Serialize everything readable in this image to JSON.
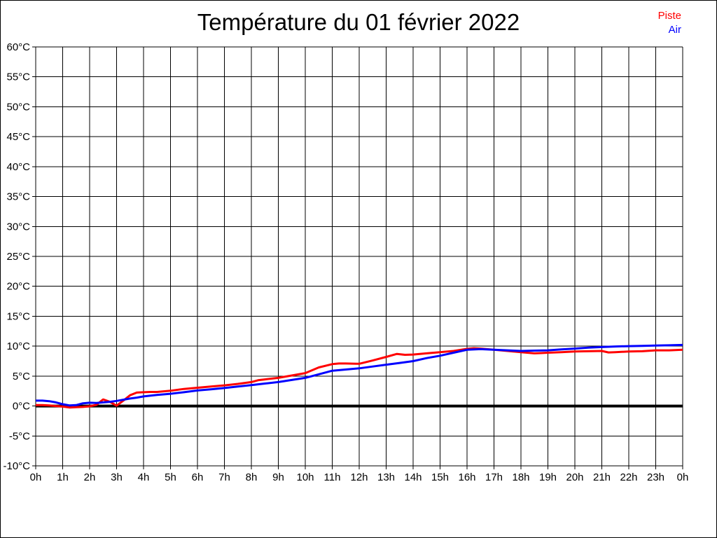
{
  "page": {
    "background_color": "#ffffff",
    "border_color": "#000000"
  },
  "chart_data": {
    "type": "line",
    "title": "Température du 01 février 2022",
    "xlabel": "",
    "ylabel": "",
    "xlim": [
      0,
      24
    ],
    "ylim": [
      -10,
      60
    ],
    "grid": true,
    "grid_color": "#000000",
    "zero_line_value": 0,
    "zero_line_color": "#000000",
    "legend_position": "top-right",
    "x_tick_labels": [
      "0h",
      "1h",
      "2h",
      "3h",
      "4h",
      "5h",
      "6h",
      "7h",
      "8h",
      "9h",
      "10h",
      "11h",
      "12h",
      "13h",
      "14h",
      "15h",
      "16h",
      "17h",
      "18h",
      "19h",
      "20h",
      "21h",
      "22h",
      "23h",
      "0h"
    ],
    "x_tick_hours": [
      0,
      1,
      2,
      3,
      4,
      5,
      6,
      7,
      8,
      9,
      10,
      11,
      12,
      13,
      14,
      15,
      16,
      17,
      18,
      19,
      20,
      21,
      22,
      23,
      24
    ],
    "y_ticks": [
      60,
      55,
      50,
      45,
      40,
      35,
      30,
      25,
      20,
      15,
      10,
      5,
      0,
      -5,
      -10
    ],
    "y_tick_suffix": "°C",
    "series": [
      {
        "name": "Piste",
        "color": "#ff0000",
        "points": [
          [
            0,
            0.15
          ],
          [
            0.25,
            0.15
          ],
          [
            0.5,
            0.1
          ],
          [
            0.75,
            0.0
          ],
          [
            1,
            -0.1
          ],
          [
            1.25,
            -0.25
          ],
          [
            1.5,
            -0.2
          ],
          [
            1.75,
            -0.15
          ],
          [
            2,
            -0.05
          ],
          [
            2.25,
            0.2
          ],
          [
            2.5,
            1.1
          ],
          [
            2.75,
            0.7
          ],
          [
            3,
            0.05
          ],
          [
            3.25,
            0.9
          ],
          [
            3.5,
            1.8
          ],
          [
            3.75,
            2.25
          ],
          [
            4,
            2.3
          ],
          [
            4.25,
            2.35
          ],
          [
            4.5,
            2.35
          ],
          [
            4.75,
            2.45
          ],
          [
            5,
            2.55
          ],
          [
            5.5,
            2.85
          ],
          [
            6,
            3.05
          ],
          [
            6.5,
            3.25
          ],
          [
            7,
            3.45
          ],
          [
            7.5,
            3.7
          ],
          [
            8,
            4.0
          ],
          [
            8.25,
            4.3
          ],
          [
            8.5,
            4.45
          ],
          [
            9,
            4.7
          ],
          [
            9.5,
            5.1
          ],
          [
            10,
            5.5
          ],
          [
            10.5,
            6.45
          ],
          [
            11,
            7.0
          ],
          [
            11.25,
            7.1
          ],
          [
            11.5,
            7.1
          ],
          [
            12,
            7.05
          ],
          [
            12.5,
            7.6
          ],
          [
            13,
            8.2
          ],
          [
            13.4,
            8.7
          ],
          [
            13.7,
            8.55
          ],
          [
            14,
            8.6
          ],
          [
            14.5,
            8.8
          ],
          [
            15,
            9.0
          ],
          [
            15.5,
            9.2
          ],
          [
            16,
            9.55
          ],
          [
            16.25,
            9.65
          ],
          [
            16.5,
            9.6
          ],
          [
            17,
            9.4
          ],
          [
            17.5,
            9.2
          ],
          [
            18,
            9.0
          ],
          [
            18.5,
            8.8
          ],
          [
            18.75,
            8.85
          ],
          [
            19,
            8.9
          ],
          [
            19.5,
            9.0
          ],
          [
            20,
            9.1
          ],
          [
            20.5,
            9.15
          ],
          [
            21,
            9.2
          ],
          [
            21.25,
            8.95
          ],
          [
            21.5,
            9.0
          ],
          [
            22,
            9.1
          ],
          [
            22.5,
            9.15
          ],
          [
            23,
            9.3
          ],
          [
            23.5,
            9.3
          ],
          [
            24,
            9.4
          ]
        ]
      },
      {
        "name": "Air",
        "color": "#0000ff",
        "points": [
          [
            0,
            0.9
          ],
          [
            0.25,
            0.9
          ],
          [
            0.5,
            0.8
          ],
          [
            0.75,
            0.6
          ],
          [
            1,
            0.3
          ],
          [
            1.25,
            0.1
          ],
          [
            1.5,
            0.15
          ],
          [
            1.75,
            0.45
          ],
          [
            2,
            0.55
          ],
          [
            2.25,
            0.5
          ],
          [
            2.5,
            0.6
          ],
          [
            2.75,
            0.7
          ],
          [
            3,
            0.85
          ],
          [
            3.25,
            1.05
          ],
          [
            3.5,
            1.25
          ],
          [
            3.75,
            1.4
          ],
          [
            4,
            1.6
          ],
          [
            4.5,
            1.85
          ],
          [
            5,
            2.05
          ],
          [
            5.5,
            2.3
          ],
          [
            6,
            2.6
          ],
          [
            6.5,
            2.8
          ],
          [
            7,
            3.0
          ],
          [
            7.5,
            3.25
          ],
          [
            8,
            3.5
          ],
          [
            8.5,
            3.75
          ],
          [
            9,
            4.0
          ],
          [
            9.5,
            4.35
          ],
          [
            10,
            4.7
          ],
          [
            10.5,
            5.3
          ],
          [
            11,
            5.9
          ],
          [
            11.5,
            6.1
          ],
          [
            12,
            6.3
          ],
          [
            12.5,
            6.6
          ],
          [
            13,
            6.9
          ],
          [
            13.5,
            7.2
          ],
          [
            14,
            7.5
          ],
          [
            14.5,
            8.0
          ],
          [
            15,
            8.4
          ],
          [
            15.5,
            8.9
          ],
          [
            16,
            9.4
          ],
          [
            16.5,
            9.5
          ],
          [
            17,
            9.4
          ],
          [
            17.5,
            9.3
          ],
          [
            18,
            9.2
          ],
          [
            18.5,
            9.25
          ],
          [
            19,
            9.3
          ],
          [
            19.5,
            9.45
          ],
          [
            20,
            9.6
          ],
          [
            20.5,
            9.75
          ],
          [
            21,
            9.85
          ],
          [
            21.5,
            9.95
          ],
          [
            22,
            10.0
          ],
          [
            22.5,
            10.05
          ],
          [
            23,
            10.1
          ],
          [
            23.5,
            10.15
          ],
          [
            24,
            10.2
          ]
        ]
      }
    ]
  }
}
